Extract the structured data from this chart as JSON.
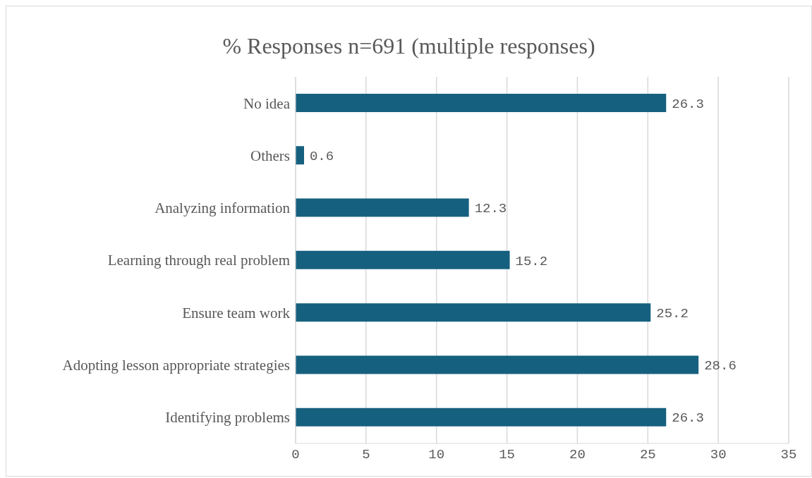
{
  "chart_data": {
    "type": "bar",
    "orientation": "horizontal",
    "title": "% Responses n=691 (multiple responses)",
    "categories": [
      "No idea",
      "Others",
      "Analyzing information",
      "Learning through real problem",
      "Ensure team work",
      "Adopting lesson appropriate strategies",
      "Identifying problems"
    ],
    "values": [
      26.3,
      0.6,
      12.3,
      15.2,
      25.2,
      28.6,
      26.3
    ],
    "color": "#16607f",
    "xlim": [
      0,
      35
    ],
    "xticks": [
      0,
      5,
      10,
      15,
      20,
      25,
      30,
      35
    ],
    "grid": "x",
    "data_labels": true
  }
}
